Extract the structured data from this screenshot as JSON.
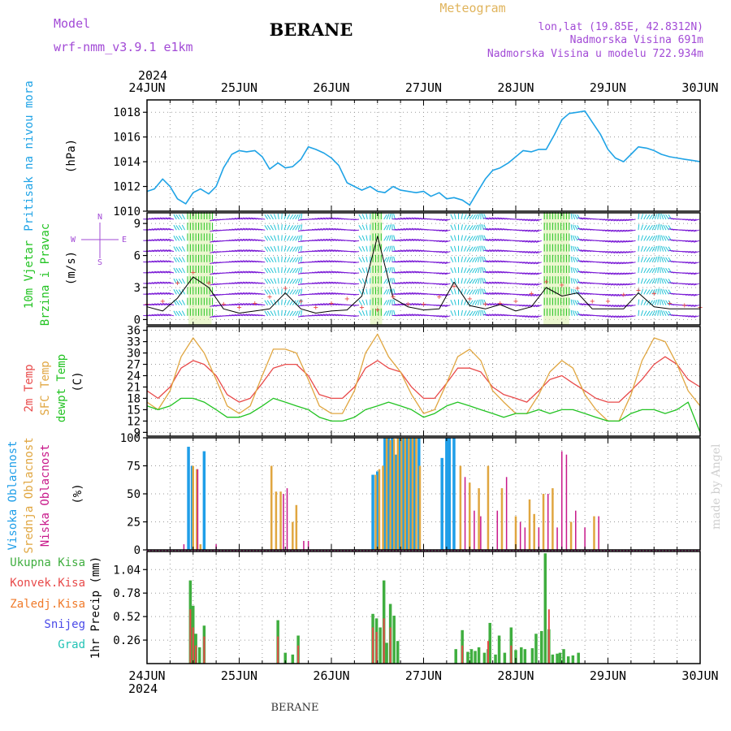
{
  "header": {
    "model_label": "Model",
    "model_name": "wrf-nmm_v3.9.1 e1km",
    "station": "BERANE",
    "product": "Meteogram",
    "coords": "lon,lat (19.85E, 42.8312N)",
    "altitude": "Nadmorska Visina 691m",
    "model_altitude": "Nadmorska Visina u modelu 722.934m",
    "footer_station": "BERANE",
    "credit": "made by Angel",
    "year": "2024"
  },
  "colors": {
    "pressure": "#1fa3e6",
    "temp2m": "#e84a4a",
    "sfc_temp": "#e0a640",
    "dewpoint": "#22c322",
    "high_cloud": "#1f9ee8",
    "mid_cloud": "#e0a640",
    "low_cloud": "#c8188a",
    "precip_total": "#3fae3f",
    "precip_conv": "#e84a4a",
    "precip_frozen": "#f07a2a",
    "snow": "#4a4ae8",
    "graupel": "#22c3b5",
    "wind_purple": "#7a1ad6",
    "wind_cyan": "#22c3d5",
    "wind_green": "#22c322",
    "wind_speed_line": "#000000",
    "wind_gust": "#e84a4a"
  },
  "chart_data": [
    {
      "type": "line",
      "panel": "pressure",
      "ylabel_colored": "Pritisak na nivou mora",
      "unit": "(hPa)",
      "x_ticks": [
        "24JUN",
        "25JUN",
        "26JUN",
        "27JUN",
        "28JUN",
        "29JUN",
        "30JUN"
      ],
      "x_range_days": [
        0,
        6
      ],
      "ylim": [
        1010,
        1019
      ],
      "y_ticks": [
        1010,
        1012,
        1014,
        1016,
        1018
      ],
      "grid": true,
      "series": [
        {
          "color_key": "pressure",
          "x": [
            0,
            0.08,
            0.17,
            0.25,
            0.33,
            0.42,
            0.5,
            0.58,
            0.67,
            0.75,
            0.83,
            0.92,
            1,
            1.08,
            1.17,
            1.25,
            1.33,
            1.42,
            1.5,
            1.58,
            1.67,
            1.75,
            1.83,
            1.92,
            2,
            2.08,
            2.17,
            2.25,
            2.33,
            2.42,
            2.5,
            2.58,
            2.67,
            2.75,
            2.83,
            2.92,
            3,
            3.08,
            3.17,
            3.25,
            3.33,
            3.42,
            3.5,
            3.58,
            3.67,
            3.75,
            3.83,
            3.92,
            4,
            4.08,
            4.17,
            4.25,
            4.33,
            4.42,
            4.5,
            4.58,
            4.67,
            4.75,
            4.83,
            4.92,
            5,
            5.08,
            5.17,
            5.25,
            5.33,
            5.42,
            5.5,
            5.58,
            5.67,
            5.75,
            5.83,
            5.92,
            6
          ],
          "values": [
            1011.6,
            1011.8,
            1012.6,
            1012.0,
            1011.0,
            1010.6,
            1011.5,
            1011.8,
            1011.4,
            1012.0,
            1013.5,
            1014.6,
            1014.9,
            1014.8,
            1014.9,
            1014.4,
            1013.4,
            1013.9,
            1013.5,
            1013.6,
            1014.2,
            1015.2,
            1015.0,
            1014.7,
            1014.3,
            1013.7,
            1012.3,
            1012.0,
            1011.7,
            1012.0,
            1011.6,
            1011.5,
            1012.0,
            1011.7,
            1011.6,
            1011.5,
            1011.6,
            1011.2,
            1011.5,
            1011.0,
            1011.1,
            1010.9,
            1010.5,
            1011.5,
            1012.6,
            1013.3,
            1013.5,
            1013.9,
            1014.4,
            1014.9,
            1014.8,
            1015.0,
            1015.0,
            1016.2,
            1017.4,
            1017.9,
            1018.0,
            1018.1,
            1017.2,
            1016.2,
            1015.0,
            1014.3,
            1014.0,
            1014.6,
            1015.2,
            1015.1,
            1014.9,
            1014.6,
            1014.4,
            1014.3,
            1014.2,
            1014.1,
            1014.0
          ]
        }
      ]
    },
    {
      "type": "line",
      "panel": "wind",
      "ylabel_colored": [
        "10m Vjetar",
        "Brzina i Pravac"
      ],
      "unit": "(m/s)",
      "compass": [
        "N",
        "E",
        "S",
        "W"
      ],
      "ylim": [
        -0.5,
        10
      ],
      "y_ticks": [
        0,
        3,
        6,
        9
      ],
      "grid": true,
      "series": [
        {
          "name": "wind_speed",
          "color_key": "wind_speed_line",
          "x": [
            0,
            0.17,
            0.33,
            0.5,
            0.67,
            0.83,
            1,
            1.17,
            1.33,
            1.5,
            1.67,
            1.83,
            2,
            2.17,
            2.33,
            2.5,
            2.67,
            2.83,
            3,
            3.17,
            3.33,
            3.5,
            3.67,
            3.83,
            4,
            4.17,
            4.33,
            4.5,
            4.67,
            4.83,
            5,
            5.17,
            5.33,
            5.5,
            5.67,
            5.83,
            6
          ],
          "values": [
            1.2,
            0.8,
            2.0,
            4.0,
            3.0,
            1.0,
            0.6,
            0.8,
            1.0,
            2.5,
            1.0,
            0.6,
            0.8,
            0.9,
            2.2,
            7.8,
            2.0,
            1.2,
            0.9,
            1.0,
            3.5,
            1.3,
            1.0,
            1.4,
            0.8,
            1.2,
            3.0,
            2.2,
            2.5,
            1.0,
            1.0,
            1.0,
            2.5,
            1.2,
            1.0,
            1.0,
            1.0
          ]
        },
        {
          "name": "wind_gust",
          "color_key": "wind_gust",
          "x": [
            0,
            0.17,
            0.33,
            0.5,
            0.67,
            0.83,
            1,
            1.17,
            1.33,
            1.5,
            1.67,
            1.83,
            2,
            2.17,
            2.33,
            2.5,
            2.67,
            2.83,
            3,
            3.17,
            3.33,
            3.5,
            3.67,
            3.83,
            4,
            4.17,
            4.33,
            4.5,
            4.67,
            4.83,
            5,
            5.17,
            5.33,
            5.5,
            5.67,
            5.83,
            6
          ],
          "values": [
            1.5,
            1.8,
            3.5,
            4.5,
            3.5,
            1.5,
            1.2,
            1.6,
            2.2,
            3.0,
            1.8,
            1.2,
            1.6,
            2.0,
            1.2,
            1.0,
            2.2,
            1.5,
            1.5,
            2.2,
            3.2,
            2.0,
            1.5,
            1.6,
            1.8,
            2.5,
            3.6,
            3.3,
            3.0,
            1.8,
            1.8,
            2.4,
            2.8,
            2.5,
            1.6,
            1.4,
            1.2
          ]
        }
      ]
    },
    {
      "type": "line",
      "panel": "temperature",
      "ylabel_colored": [
        "2m Temp",
        "SFC Temp",
        "dewpt Temp"
      ],
      "unit": "(C)",
      "ylim": [
        8,
        37
      ],
      "y_ticks": [
        9,
        12,
        15,
        18,
        21,
        24,
        27,
        30,
        33,
        36
      ],
      "grid": true,
      "series": [
        {
          "name": "2m Temp",
          "color_key": "temp2m",
          "x": [
            0,
            0.12,
            0.25,
            0.37,
            0.5,
            0.62,
            0.75,
            0.87,
            1,
            1.12,
            1.25,
            1.37,
            1.5,
            1.62,
            1.75,
            1.87,
            2,
            2.12,
            2.25,
            2.37,
            2.5,
            2.62,
            2.75,
            2.87,
            3,
            3.12,
            3.25,
            3.37,
            3.5,
            3.62,
            3.75,
            3.87,
            4,
            4.12,
            4.25,
            4.37,
            4.5,
            4.62,
            4.75,
            4.87,
            5,
            5.12,
            5.25,
            5.37,
            5.5,
            5.62,
            5.75,
            5.87,
            6
          ],
          "values": [
            20,
            18,
            21,
            26,
            28,
            27,
            24,
            19,
            17,
            18,
            22,
            26,
            27,
            27,
            24,
            19,
            18,
            18,
            21,
            26,
            28,
            26,
            25,
            21,
            18,
            18,
            22,
            26,
            26,
            25,
            21,
            19,
            18,
            17,
            20,
            23,
            24,
            22,
            20,
            18,
            17,
            17,
            20,
            23,
            27,
            29,
            27,
            23,
            21
          ]
        },
        {
          "name": "SFC Temp",
          "color_key": "sfc_temp",
          "x": [
            0,
            0.12,
            0.25,
            0.37,
            0.5,
            0.62,
            0.75,
            0.87,
            1,
            1.12,
            1.25,
            1.37,
            1.5,
            1.62,
            1.75,
            1.87,
            2,
            2.12,
            2.25,
            2.37,
            2.5,
            2.62,
            2.75,
            2.87,
            3,
            3.12,
            3.25,
            3.37,
            3.5,
            3.62,
            3.75,
            3.87,
            4,
            4.12,
            4.25,
            4.37,
            4.5,
            4.62,
            4.75,
            4.87,
            5,
            5.12,
            5.25,
            5.37,
            5.5,
            5.62,
            5.75,
            5.87,
            6
          ],
          "values": [
            17,
            15,
            20,
            29,
            34,
            30,
            23,
            16,
            14,
            16,
            24,
            31,
            31,
            30,
            23,
            16,
            14,
            14,
            20,
            30,
            35,
            29,
            25,
            19,
            14,
            15,
            22,
            29,
            31,
            28,
            20,
            17,
            14,
            14,
            19,
            25,
            28,
            26,
            19,
            15,
            12,
            12,
            19,
            28,
            34,
            33,
            27,
            20,
            16
          ]
        },
        {
          "name": "dewpt Temp",
          "color_key": "dewpoint",
          "x": [
            0,
            0.12,
            0.25,
            0.37,
            0.5,
            0.62,
            0.75,
            0.87,
            1,
            1.12,
            1.25,
            1.37,
            1.5,
            1.62,
            1.75,
            1.87,
            2,
            2.12,
            2.25,
            2.37,
            2.5,
            2.62,
            2.75,
            2.87,
            3,
            3.12,
            3.25,
            3.37,
            3.5,
            3.62,
            3.75,
            3.87,
            4,
            4.12,
            4.25,
            4.37,
            4.5,
            4.62,
            4.75,
            4.87,
            5,
            5.12,
            5.25,
            5.37,
            5.5,
            5.62,
            5.75,
            5.87,
            6
          ],
          "values": [
            16,
            15,
            16,
            18,
            18,
            17,
            15,
            13,
            13,
            14,
            16,
            18,
            17,
            16,
            15,
            13,
            12,
            12,
            13,
            15,
            16,
            17,
            16,
            15,
            13,
            14,
            16,
            17,
            16,
            15,
            14,
            13,
            14,
            14,
            15,
            14,
            15,
            15,
            14,
            13,
            12,
            12,
            14,
            15,
            15,
            14,
            15,
            17,
            9
          ]
        }
      ]
    },
    {
      "type": "bar",
      "panel": "cloud",
      "ylabel_colored": [
        "Visoka Oblacnost",
        "Srednja Oblacnost",
        "Niska Oblacnost"
      ],
      "unit": "(%)",
      "ylim": [
        0,
        100
      ],
      "y_ticks": [
        0,
        25,
        50,
        75,
        100
      ],
      "grid": true,
      "series": [
        {
          "name": "Visoka Oblacnost",
          "color_key": "high_cloud",
          "x": [
            0.45,
            0.49,
            0.62,
            2.45,
            2.5,
            2.58,
            2.62,
            2.66,
            2.7,
            2.74,
            2.78,
            2.82,
            2.86,
            2.9,
            2.95,
            3.2,
            3.25,
            3.28,
            3.33
          ],
          "values": [
            92,
            75,
            88,
            67,
            70,
            100,
            100,
            100,
            85,
            100,
            100,
            100,
            100,
            100,
            100,
            82,
            100,
            100,
            100
          ]
        },
        {
          "name": "Srednja Oblacnost",
          "color_key": "mid_cloud",
          "x": [
            0.5,
            0.54,
            0.58,
            1.35,
            1.4,
            1.45,
            1.58,
            1.62,
            2.48,
            2.52,
            2.56,
            2.6,
            2.64,
            2.68,
            2.72,
            2.76,
            2.8,
            2.84,
            2.88,
            2.92,
            2.96,
            3.4,
            3.5,
            3.6,
            3.7,
            3.85,
            4.0,
            4.15,
            4.2,
            4.3,
            4.4,
            4.6,
            4.85
          ],
          "values": [
            75,
            72,
            5,
            75,
            52,
            52,
            25,
            40,
            67,
            72,
            75,
            100,
            98,
            99,
            100,
            100,
            100,
            100,
            100,
            100,
            75,
            75,
            60,
            55,
            75,
            55,
            30,
            45,
            32,
            50,
            55,
            25,
            30
          ]
        },
        {
          "name": "Niska Oblacnost",
          "color_key": "low_cloud",
          "x": [
            0.4,
            0.55,
            0.75,
            1.48,
            1.52,
            1.7,
            1.75,
            3.45,
            3.55,
            3.62,
            3.8,
            3.9,
            4.05,
            4.1,
            4.25,
            4.35,
            4.45,
            4.5,
            4.55,
            4.65,
            4.75,
            4.9
          ],
          "values": [
            5,
            72,
            5,
            50,
            55,
            8,
            8,
            65,
            35,
            30,
            35,
            65,
            25,
            20,
            20,
            50,
            20,
            88,
            85,
            35,
            20,
            30
          ]
        }
      ]
    },
    {
      "type": "bar",
      "panel": "precip",
      "ylabel_colored": [
        "Ukupna Kisa",
        "Konvek.Kisa",
        "Zaledj.Kisa",
        "Snijeg",
        "Grad"
      ],
      "unit": "1hr Precip (mm)",
      "ylim": [
        0,
        1.24
      ],
      "y_ticks": [
        0.26,
        0.52,
        0.78,
        1.04
      ],
      "grid": true,
      "series": [
        {
          "name": "Ukupna Kisa",
          "color_key": "precip_total",
          "x": [
            0.47,
            0.5,
            0.53,
            0.57,
            0.62,
            1.42,
            1.5,
            1.58,
            1.64,
            2.45,
            2.49,
            2.53,
            2.57,
            2.6,
            2.64,
            2.68,
            2.72,
            3.35,
            3.42,
            3.48,
            3.52,
            3.56,
            3.6,
            3.66,
            3.7,
            3.72,
            3.78,
            3.82,
            3.88,
            3.95,
            4.0,
            4.06,
            4.1,
            4.18,
            4.22,
            4.28,
            4.32,
            4.36,
            4.4,
            4.45,
            4.48,
            4.52,
            4.57,
            4.62,
            4.68
          ],
          "values": [
            0.92,
            0.64,
            0.33,
            0.18,
            0.42,
            0.48,
            0.12,
            0.1,
            0.31,
            0.55,
            0.5,
            0.4,
            0.92,
            0.23,
            0.66,
            0.53,
            0.25,
            0.16,
            0.37,
            0.13,
            0.16,
            0.14,
            0.18,
            0.12,
            0.16,
            0.45,
            0.1,
            0.31,
            0.12,
            0.4,
            0.15,
            0.18,
            0.16,
            0.17,
            0.33,
            0.36,
            1.22,
            0.38,
            0.1,
            0.11,
            0.12,
            0.16,
            0.08,
            0.09,
            0.12
          ]
        },
        {
          "name": "Konvek.Kisa",
          "color_key": "precip_conv",
          "x": [
            0.47,
            0.5,
            0.53,
            0.62,
            1.42,
            1.64,
            2.45,
            2.49,
            2.57,
            2.64,
            3.42,
            3.7,
            3.95,
            4.36
          ],
          "values": [
            0.6,
            0.4,
            0.2,
            0.3,
            0.3,
            0.2,
            0.4,
            0.35,
            0.5,
            0.4,
            0.2,
            0.25,
            0.2,
            0.6
          ]
        }
      ]
    }
  ]
}
